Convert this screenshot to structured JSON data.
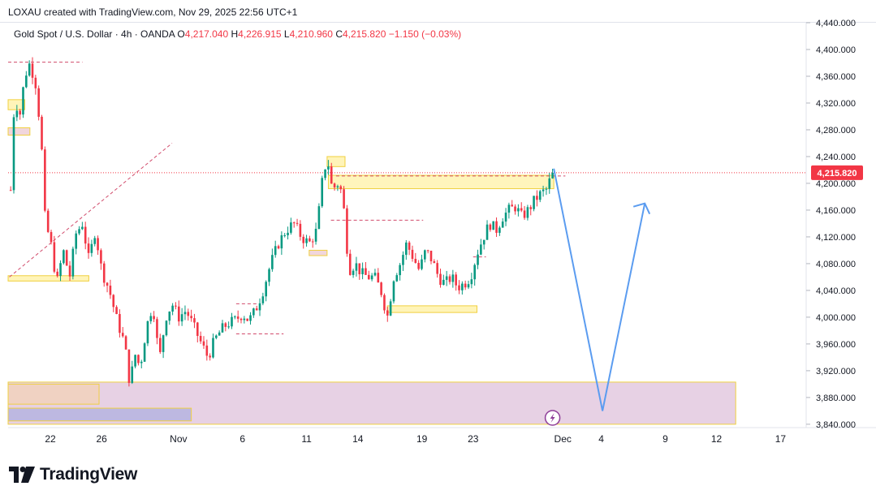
{
  "header": {
    "text": "LOXAU created with TradingView.com, Nov 29, 2025 22:56 UTC+1"
  },
  "legend": {
    "symbol": "Gold Spot / U.S. Dollar · 4h · OANDA",
    "open_label": "O",
    "open": "4,217.040",
    "high_label": "H",
    "high": "4,226.915",
    "low_label": "L",
    "low": "4,210.960",
    "close_label": "C",
    "close": "4,215.820",
    "change": "−1.150 (−0.03%)"
  },
  "brand": {
    "name": "TradingView"
  },
  "colors": {
    "up": "#089981",
    "down": "#f23645",
    "projection": "#5b9cf0",
    "zone": "#e3c9df",
    "block": "#fff3b0",
    "price_tag": "#f23645"
  },
  "chart_data": {
    "type": "candlestick",
    "instrument": "Gold Spot / U.S. Dollar",
    "timeframe": "4h",
    "y_ticks": [
      "4,440.000",
      "4,400.000",
      "4,360.000",
      "4,320.000",
      "4,280.000",
      "4,240.000",
      "4,200.000",
      "4,160.000",
      "4,120.000",
      "4,080.000",
      "4,040.000",
      "4,000.000",
      "3,960.000",
      "3,920.000",
      "3,880.000",
      "3,840.000"
    ],
    "y_tick_values": [
      4440,
      4400,
      4360,
      4320,
      4280,
      4240,
      4200,
      4160,
      4120,
      4080,
      4040,
      4000,
      3960,
      3920,
      3880,
      3840
    ],
    "x_ticks": [
      "22",
      "26",
      "Nov",
      "6",
      "11",
      "14",
      "19",
      "23",
      "Dec",
      "4",
      "9",
      "12",
      "17"
    ],
    "x_tick_days": [
      22,
      26,
      32,
      37,
      42,
      46,
      51,
      55,
      62,
      65,
      70,
      74,
      79
    ],
    "ylim": [
      3835,
      4440
    ],
    "xlim": [
      18.7,
      81
    ],
    "current_price": 4215.82,
    "current_price_label": "4,215.820",
    "price_path": [
      [
        18.9,
        4190
      ],
      [
        19.2,
        4330
      ],
      [
        19.6,
        4300
      ],
      [
        20.0,
        4360
      ],
      [
        20.4,
        4380
      ],
      [
        20.9,
        4345
      ],
      [
        21.3,
        4260
      ],
      [
        21.6,
        4140
      ],
      [
        22.0,
        4115
      ],
      [
        22.5,
        4050
      ],
      [
        23.0,
        4100
      ],
      [
        23.5,
        4060
      ],
      [
        24.0,
        4125
      ],
      [
        24.5,
        4140
      ],
      [
        25.0,
        4085
      ],
      [
        25.5,
        4130
      ],
      [
        26.0,
        4070
      ],
      [
        26.6,
        4040
      ],
      [
        27.2,
        3995
      ],
      [
        27.8,
        3960
      ],
      [
        28.2,
        3900
      ],
      [
        28.6,
        3945
      ],
      [
        29.0,
        3925
      ],
      [
        29.5,
        3985
      ],
      [
        30.0,
        4020
      ],
      [
        30.5,
        3935
      ],
      [
        31.0,
        4000
      ],
      [
        31.5,
        4020
      ],
      [
        32.0,
        4000
      ],
      [
        32.6,
        4010
      ],
      [
        33.2,
        3985
      ],
      [
        33.8,
        3960
      ],
      [
        34.3,
        3940
      ],
      [
        34.8,
        3965
      ],
      [
        35.3,
        3980
      ],
      [
        35.8,
        3990
      ],
      [
        36.4,
        3995
      ],
      [
        37.0,
        4005
      ],
      [
        37.5,
        3995
      ],
      [
        38.0,
        4010
      ],
      [
        38.6,
        4040
      ],
      [
        39.2,
        4080
      ],
      [
        39.8,
        4110
      ],
      [
        40.4,
        4130
      ],
      [
        41.0,
        4140
      ],
      [
        41.6,
        4120
      ],
      [
        42.2,
        4110
      ],
      [
        42.8,
        4130
      ],
      [
        43.2,
        4200
      ],
      [
        43.6,
        4240
      ],
      [
        44.0,
        4190
      ],
      [
        44.4,
        4200
      ],
      [
        44.8,
        4185
      ],
      [
        45.0,
        4140
      ],
      [
        45.3,
        4070
      ],
      [
        45.8,
        4080
      ],
      [
        46.3,
        4065
      ],
      [
        46.8,
        4060
      ],
      [
        47.3,
        4060
      ],
      [
        47.8,
        4040
      ],
      [
        48.3,
        4000
      ],
      [
        48.8,
        4060
      ],
      [
        49.3,
        4080
      ],
      [
        49.8,
        4110
      ],
      [
        50.3,
        4090
      ],
      [
        50.8,
        4070
      ],
      [
        51.3,
        4100
      ],
      [
        51.8,
        4085
      ],
      [
        52.3,
        4060
      ],
      [
        52.8,
        4050
      ],
      [
        53.3,
        4060
      ],
      [
        53.8,
        4045
      ],
      [
        54.3,
        4050
      ],
      [
        54.8,
        4060
      ],
      [
        55.3,
        4095
      ],
      [
        55.8,
        4120
      ],
      [
        56.3,
        4140
      ],
      [
        56.8,
        4130
      ],
      [
        57.3,
        4150
      ],
      [
        57.8,
        4160
      ],
      [
        58.3,
        4165
      ],
      [
        58.8,
        4150
      ],
      [
        59.3,
        4160
      ],
      [
        59.8,
        4175
      ],
      [
        60.3,
        4185
      ],
      [
        60.7,
        4190
      ],
      [
        61.0,
        4205
      ],
      [
        61.2,
        4215.82
      ]
    ],
    "projection": {
      "points": [
        [
          61.3,
          4222
        ],
        [
          65.1,
          3860
        ],
        [
          68.4,
          4170
        ]
      ],
      "arrow_head": "up-right"
    },
    "zones": [
      {
        "kind": "demand",
        "x0": 18.7,
        "x1": 75.5,
        "y0": 3840,
        "y1": 3903
      },
      {
        "kind": "support-band",
        "x0": 18.7,
        "x1": 25.8,
        "y0": 3870,
        "y1": 3900
      },
      {
        "kind": "support-band",
        "x0": 18.7,
        "x1": 33.0,
        "y0": 3845,
        "y1": 3864
      },
      {
        "kind": "resistance-block",
        "x0": 43.7,
        "x1": 61.3,
        "y0": 4192,
        "y1": 4212
      },
      {
        "kind": "block",
        "x0": 48.3,
        "x1": 55.3,
        "y0": 4007,
        "y1": 4017
      },
      {
        "kind": "block",
        "x0": 18.7,
        "x1": 25.0,
        "y0": 4054,
        "y1": 4062
      },
      {
        "kind": "block",
        "x0": 18.7,
        "x1": 20.0,
        "y0": 4310,
        "y1": 4325
      },
      {
        "kind": "block",
        "x0": 18.7,
        "x1": 20.4,
        "y0": 4272,
        "y1": 4283
      },
      {
        "kind": "block",
        "x0": 42.2,
        "x1": 43.6,
        "y0": 4092,
        "y1": 4100
      },
      {
        "kind": "block",
        "x0": 43.6,
        "x1": 45.0,
        "y0": 4225,
        "y1": 4240
      }
    ],
    "dashed_levels": [
      {
        "x0": 18.7,
        "x1": 24.5,
        "y": 4381
      },
      {
        "x0": 43.9,
        "x1": 51.1,
        "y": 4145
      },
      {
        "x0": 44.3,
        "x1": 62.2,
        "y": 4211
      },
      {
        "x0": 36.5,
        "x1": 40.2,
        "y": 3975
      },
      {
        "x0": 36.5,
        "x1": 38.2,
        "y": 4020
      },
      {
        "x0": 55.0,
        "x1": 56.0,
        "y": 4090
      }
    ],
    "trendline": {
      "from": [
        18.8,
        4060
      ],
      "to": [
        31.5,
        4260
      ]
    }
  }
}
